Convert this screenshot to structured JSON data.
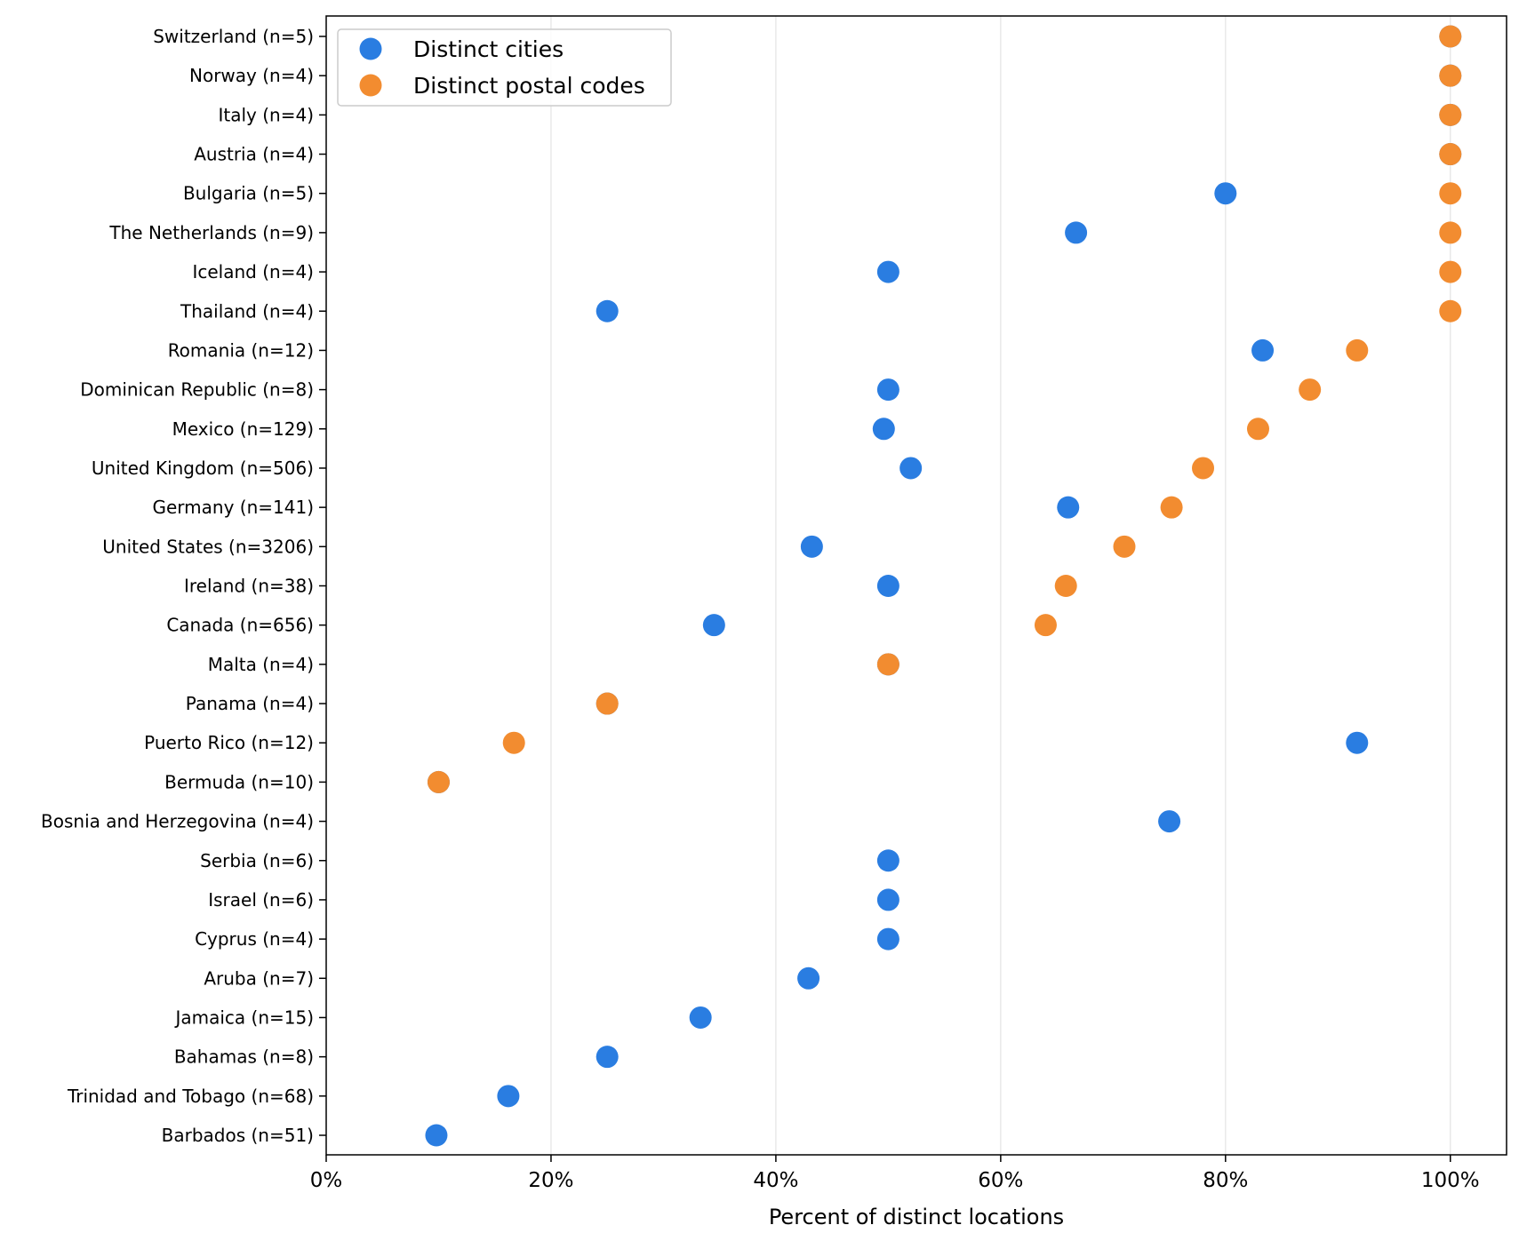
{
  "chart_data": {
    "type": "scatter",
    "orientation": "horizontal",
    "xlabel": "Percent of distinct locations",
    "ylabel": "",
    "title": "",
    "xlim": [
      0,
      105
    ],
    "x_ticks": [
      0,
      20,
      40,
      60,
      80,
      100
    ],
    "x_tick_labels": [
      "0%",
      "20%",
      "40%",
      "60%",
      "80%",
      "100%"
    ],
    "grid": "vertical",
    "legend_position": "top-left",
    "categories": [
      "Switzerland (n=5)",
      "Norway (n=4)",
      "Italy (n=4)",
      "Austria (n=4)",
      "Bulgaria (n=5)",
      "The Netherlands (n=9)",
      "Iceland (n=4)",
      "Thailand (n=4)",
      "Romania (n=12)",
      "Dominican Republic (n=8)",
      "Mexico (n=129)",
      "United Kingdom (n=506)",
      "Germany (n=141)",
      "United States (n=3206)",
      "Ireland (n=38)",
      "Canada (n=656)",
      "Malta (n=4)",
      "Panama (n=4)",
      "Puerto Rico (n=12)",
      "Bermuda (n=10)",
      "Bosnia and Herzegovina (n=4)",
      "Serbia (n=6)",
      "Israel (n=6)",
      "Cyprus (n=4)",
      "Aruba (n=7)",
      "Jamaica (n=15)",
      "Bahamas (n=8)",
      "Trinidad and Tobago (n=68)",
      "Barbados (n=51)"
    ],
    "series": [
      {
        "name": "Distinct cities",
        "color": "#2a7de1",
        "values": [
          100,
          100,
          100,
          100,
          80,
          66.7,
          50,
          25,
          83.3,
          50,
          49.6,
          52,
          66,
          43.2,
          50,
          34.5,
          50,
          25,
          91.7,
          10,
          75,
          50,
          50,
          50,
          42.9,
          33.3,
          25,
          16.2,
          9.8
        ]
      },
      {
        "name": "Distinct postal codes",
        "color": "#f28c30",
        "values": [
          100,
          100,
          100,
          100,
          100,
          100,
          100,
          100,
          91.7,
          87.5,
          82.9,
          78,
          75.2,
          71,
          65.8,
          64,
          50,
          25,
          16.7,
          10,
          null,
          null,
          null,
          null,
          null,
          null,
          null,
          null,
          null
        ]
      }
    ]
  }
}
